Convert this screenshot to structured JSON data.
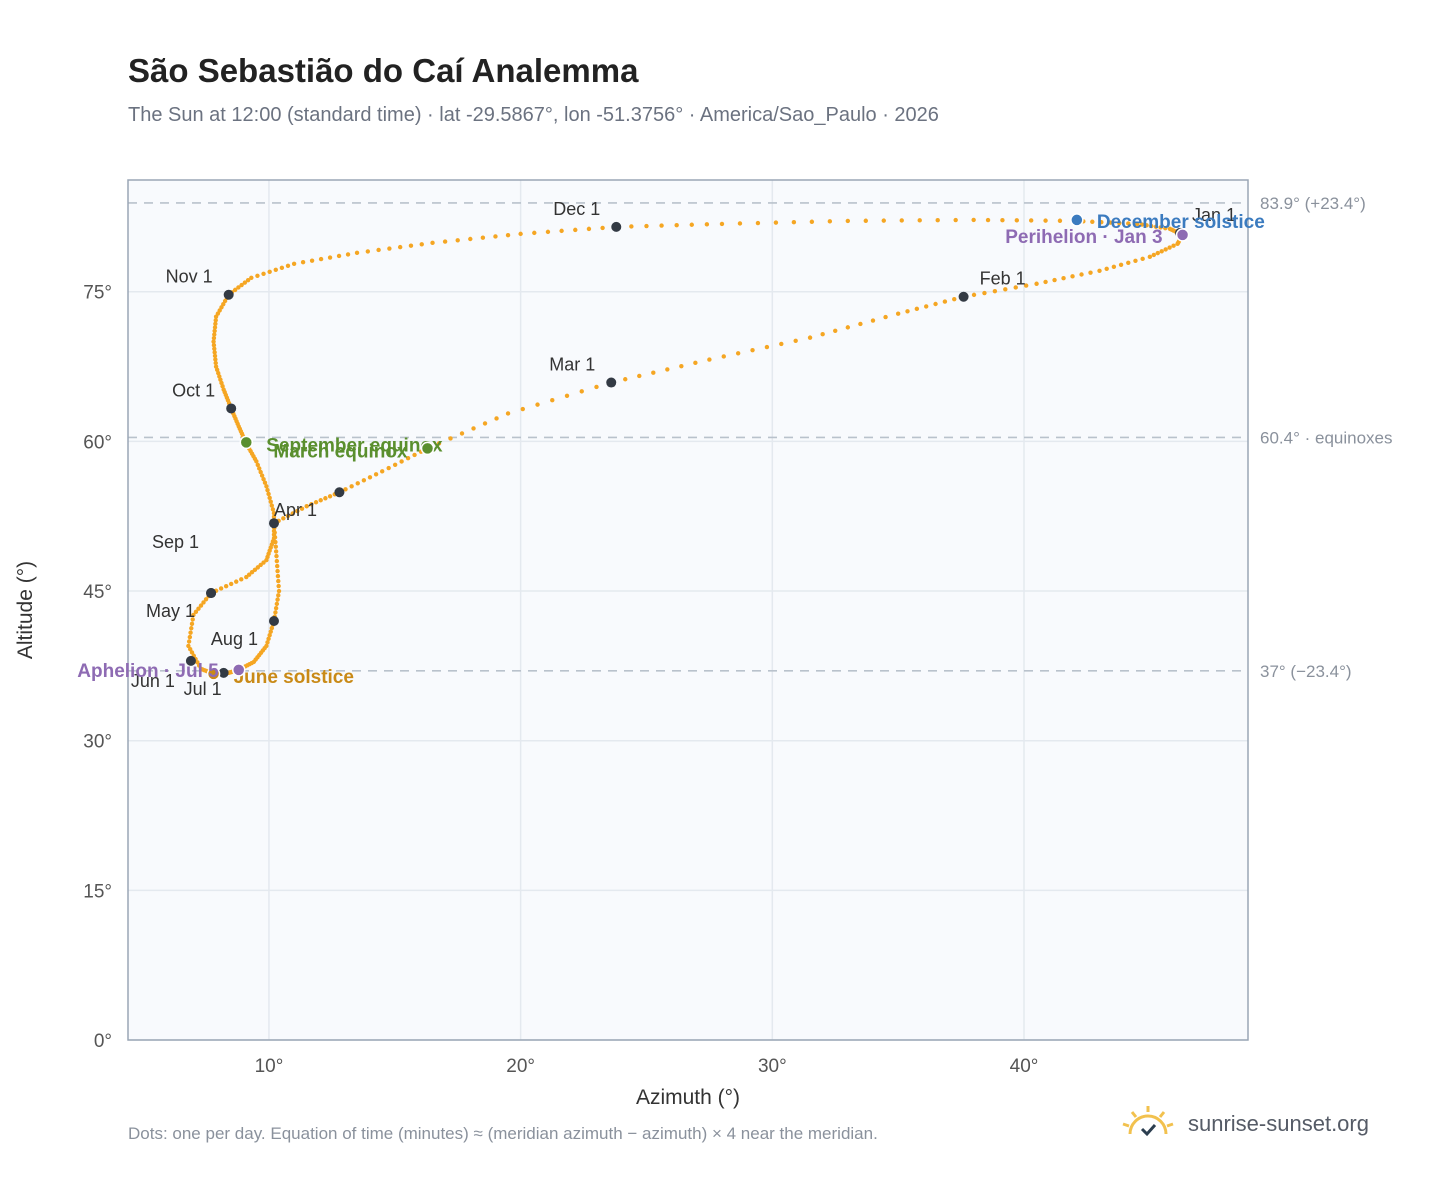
{
  "title": "São Sebastião do Caí Analemma",
  "subtitle": "The Sun at 12:00 (standard time) · lat -29.5867°, lon -51.3756° · America/Sao_Paulo · 2026",
  "footnote": "Dots: one per day. Equation of time (minutes) ≈ (meridian azimuth − azimuth) × 4 near the meridian.",
  "brand": {
    "name": "sunrise-sunset.org",
    "logo_icon": "sun-logo-icon"
  },
  "colors": {
    "curve": "#f5a623",
    "month_marker": "#333a44",
    "equinox": "#5a8f2e",
    "december_solstice": "#3b7bbf",
    "june_solstice": "#c98a17",
    "apsides": "#8e6bb3",
    "reference_line": "#b9c2cc",
    "plot_bg": "#f8fafd",
    "grid": "#e4e9ef",
    "frame": "#9aa6b5"
  },
  "chart_data": {
    "type": "scatter",
    "xlabel": "Azimuth (°)",
    "ylabel": "Altitude (°)",
    "xlim": [
      4.4,
      48.9
    ],
    "ylim": [
      0,
      86.2
    ],
    "xticks": [
      10,
      20,
      30,
      40
    ],
    "xtick_labels": [
      "10°",
      "20°",
      "30°",
      "40°"
    ],
    "yticks": [
      0,
      15,
      30,
      45,
      60,
      75
    ],
    "ytick_labels": [
      "0°",
      "15°",
      "30°",
      "45°",
      "60°",
      "75°"
    ],
    "grid": true,
    "reference_lines": [
      {
        "y": 83.9,
        "label": "83.9° (+23.4°)"
      },
      {
        "y": 60.4,
        "label": "60.4° · equinoxes"
      },
      {
        "y": 37.0,
        "label": "37° (−23.4°)"
      }
    ],
    "series": [
      {
        "points_azimuth_altitude": [
          [
            46.3,
            80.7
          ],
          [
            45.8,
            81.3
          ],
          [
            44.5,
            81.8
          ],
          [
            42.0,
            82.1
          ],
          [
            38.0,
            82.2
          ],
          [
            33.0,
            82.1
          ],
          [
            28.0,
            81.8
          ],
          [
            23.8,
            81.5
          ],
          [
            20.0,
            80.8
          ],
          [
            16.5,
            79.9
          ],
          [
            13.5,
            78.9
          ],
          [
            11.0,
            77.8
          ],
          [
            9.3,
            76.4
          ],
          [
            8.4,
            74.7
          ],
          [
            7.9,
            72.5
          ],
          [
            7.8,
            70.0
          ],
          [
            7.9,
            67.5
          ],
          [
            8.2,
            65.2
          ],
          [
            8.5,
            63.3
          ],
          [
            8.8,
            61.5
          ],
          [
            9.1,
            59.8
          ],
          [
            9.5,
            58.0
          ],
          [
            9.9,
            55.5
          ],
          [
            10.2,
            52.8
          ],
          [
            10.2,
            50.3
          ],
          [
            9.9,
            48.1
          ],
          [
            9.1,
            46.4
          ],
          [
            7.7,
            44.8
          ],
          [
            7.0,
            42.6
          ],
          [
            6.8,
            39.5
          ],
          [
            7.3,
            37.2
          ],
          [
            7.8,
            36.7
          ],
          [
            8.4,
            36.8
          ],
          [
            8.8,
            37.1
          ],
          [
            9.4,
            37.9
          ],
          [
            9.9,
            39.5
          ],
          [
            10.2,
            42.0
          ],
          [
            10.4,
            45.0
          ],
          [
            10.3,
            48.5
          ],
          [
            10.2,
            51.8
          ],
          [
            11.5,
            53.5
          ],
          [
            12.8,
            54.9
          ],
          [
            14.5,
            57.0
          ],
          [
            16.3,
            59.3
          ],
          [
            19.5,
            62.8
          ],
          [
            23.6,
            65.9
          ],
          [
            27.5,
            68.2
          ],
          [
            31.5,
            70.4
          ],
          [
            35.0,
            72.8
          ],
          [
            37.6,
            74.5
          ],
          [
            40.5,
            75.8
          ],
          [
            43.0,
            77.1
          ],
          [
            45.0,
            78.5
          ],
          [
            46.1,
            79.8
          ],
          [
            46.3,
            80.7
          ]
        ]
      }
    ],
    "month_markers": [
      {
        "label": "Jan 1",
        "az": 46.2,
        "alt": 80.9
      },
      {
        "label": "Feb 1",
        "az": 37.6,
        "alt": 74.5
      },
      {
        "label": "Mar 1",
        "az": 23.6,
        "alt": 65.9
      },
      {
        "label": "Apr 1",
        "az": 10.2,
        "alt": 51.8
      },
      {
        "label": "",
        "az": 12.8,
        "alt": 54.9
      },
      {
        "label": "May 1",
        "az": 7.7,
        "alt": 44.8
      },
      {
        "label": "Jun 1",
        "az": 6.9,
        "alt": 38.0
      },
      {
        "label": "Jul 1",
        "az": 8.2,
        "alt": 36.8
      },
      {
        "label": "Aug 1",
        "az": 10.2,
        "alt": 42.0
      },
      {
        "label": "Sep 1",
        "az": 7.7,
        "alt": 44.8
      },
      {
        "label": "Oct 1",
        "az": 8.5,
        "alt": 63.3
      },
      {
        "label": "Nov 1",
        "az": 8.4,
        "alt": 74.7
      },
      {
        "label": "Dec 1",
        "az": 23.8,
        "alt": 81.5
      }
    ],
    "events": [
      {
        "label": "September equinox",
        "az": 9.1,
        "alt": 59.9,
        "color_key": "equinox"
      },
      {
        "label": "March equinox",
        "az": 16.3,
        "alt": 59.3,
        "color_key": "equinox"
      },
      {
        "label": "December solstice",
        "az": 42.1,
        "alt": 82.2,
        "color_key": "december_solstice"
      },
      {
        "label": "June solstice",
        "az": 7.8,
        "alt": 36.7,
        "color_key": "june_solstice"
      },
      {
        "label": "Perihelion · Jan 3",
        "az": 46.3,
        "alt": 80.7,
        "color_key": "apsides"
      },
      {
        "label": "Aphelion · Jul 5",
        "az": 8.8,
        "alt": 37.1,
        "color_key": "apsides"
      }
    ]
  }
}
